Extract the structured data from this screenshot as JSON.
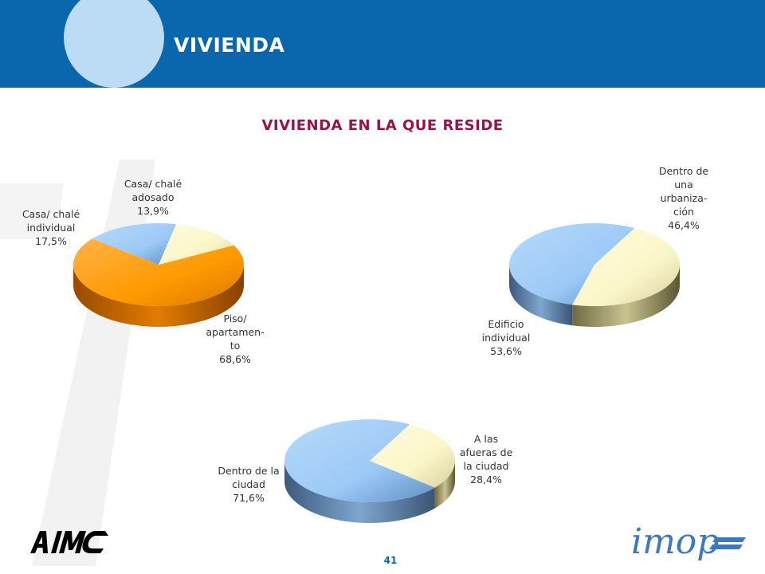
{
  "header": {
    "title": "VIVIENDA"
  },
  "chart_title": "VIVIENDA EN LA QUE RESIDE",
  "page_number": "41",
  "logos": {
    "left": "AIMC",
    "right": "imop"
  },
  "colors": {
    "header_blue": "#0a66ad",
    "header_circle": "#bcdcf6",
    "title_color": "#98124a",
    "orange": "#ff9900",
    "light_blue": "#9cc9f6",
    "cream": "#fbf6c8"
  },
  "chart_data": [
    {
      "type": "pie",
      "title": "",
      "slices": [
        {
          "label": [
            "Piso/",
            "apartamen-",
            "to",
            "68,6%"
          ],
          "value": 68.6,
          "color": "#ff9900"
        },
        {
          "label": [
            "Casa/ chalé",
            "individual",
            "17,5%"
          ],
          "value": 17.5,
          "color": "#9cc9f6"
        },
        {
          "label": [
            "Casa/ chalé",
            "adosado",
            "13,9%"
          ],
          "value": 13.9,
          "color": "#fbf6c8"
        }
      ]
    },
    {
      "type": "pie",
      "title": "",
      "slices": [
        {
          "label": [
            "Dentro de",
            "una",
            "urbaniza-",
            "ción",
            "46,4%"
          ],
          "value": 46.4,
          "color": "#fbf6c8"
        },
        {
          "label": [
            "Edificio",
            "individual",
            "53,6%"
          ],
          "value": 53.6,
          "color": "#9cc9f6"
        }
      ]
    },
    {
      "type": "pie",
      "title": "",
      "slices": [
        {
          "label": [
            "A las",
            "afueras de",
            "la ciudad",
            "28,4%"
          ],
          "value": 28.4,
          "color": "#fbf6c8"
        },
        {
          "label": [
            "Dentro de la",
            "ciudad",
            "71,6%"
          ],
          "value": 71.6,
          "color": "#9cc9f6"
        }
      ]
    }
  ]
}
